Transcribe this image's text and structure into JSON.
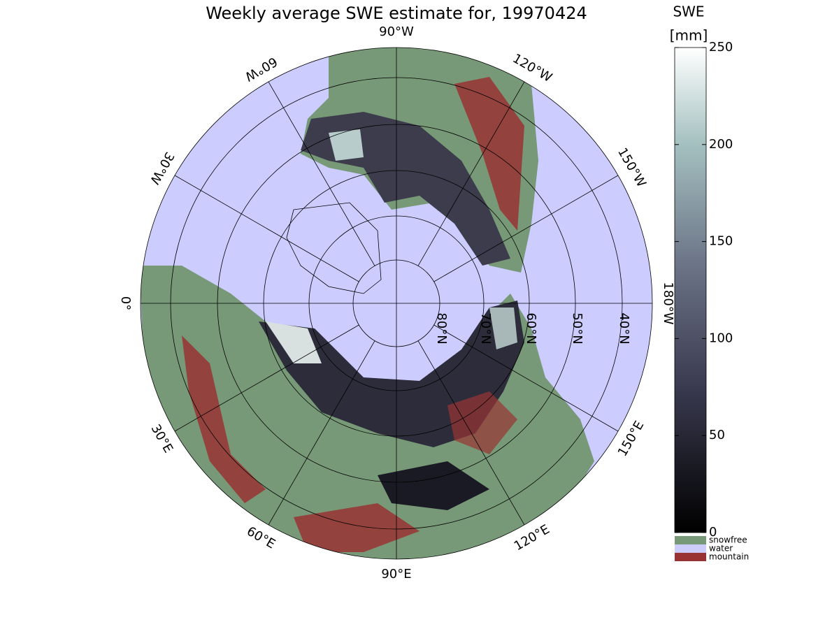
{
  "title": "Weekly average SWE estimate for, 19970424",
  "colorbar": {
    "label": "SWE",
    "unit": "[mm]",
    "lim": [
      0,
      250
    ],
    "ticks": [
      0,
      50,
      100,
      150,
      200,
      250
    ]
  },
  "legend": [
    {
      "name": "snowfree",
      "color": "#779977"
    },
    {
      "name": "water",
      "color": "#ccccff"
    },
    {
      "name": "mountain",
      "color": "#993333"
    }
  ],
  "longitude_labels": [
    "90°W",
    "120°W",
    "150°W",
    "180°W",
    "150°E",
    "120°E",
    "90°E",
    "60°E",
    "30°E",
    "0°",
    "30°W",
    "60°W"
  ],
  "latitude_labels": [
    "80°N",
    "70°N",
    "60°N",
    "50°N",
    "40°N"
  ]
}
